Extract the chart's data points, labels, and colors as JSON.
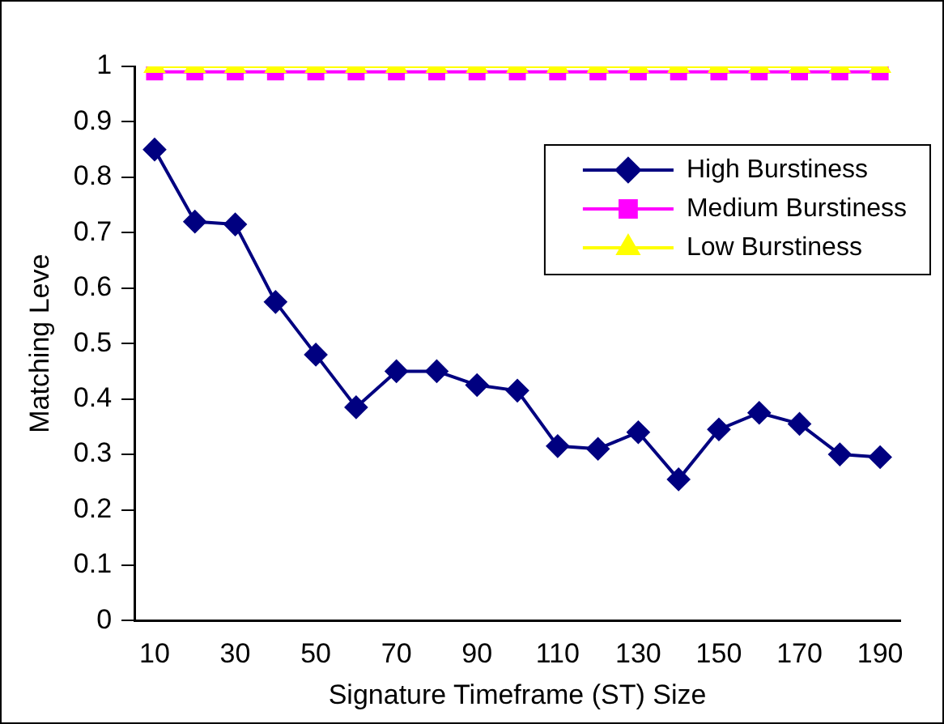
{
  "chart_data": {
    "type": "line",
    "xlabel": "Signature Timeframe (ST) Size",
    "ylabel": "Matching Leve",
    "categories": [
      "10",
      null,
      "30",
      null,
      "50",
      null,
      "70",
      null,
      "90",
      null,
      "110",
      null,
      "130",
      null,
      "150",
      null,
      "170",
      null,
      "190"
    ],
    "series": [
      {
        "name": "High Burstiness",
        "color": "#000080",
        "marker": "diamond",
        "values": [
          0.85,
          0.72,
          0.715,
          0.575,
          0.48,
          0.385,
          0.45,
          0.45,
          0.425,
          0.415,
          0.315,
          0.31,
          0.34,
          0.255,
          0.345,
          0.375,
          0.355,
          0.3,
          0.295
        ]
      },
      {
        "name": "Medium Burstiness",
        "color": "#ff00ff",
        "marker": "square",
        "values": [
          0.99,
          0.99,
          0.99,
          0.99,
          0.99,
          0.99,
          0.99,
          0.99,
          0.99,
          0.99,
          0.99,
          0.99,
          0.99,
          0.99,
          0.99,
          0.99,
          0.99,
          0.99,
          0.99
        ]
      },
      {
        "name": "Low Burstiness",
        "color": "#ffff00",
        "marker": "triangle",
        "values": [
          1,
          1,
          1,
          1,
          1,
          1,
          1,
          1,
          1,
          1,
          1,
          1,
          1,
          1,
          1,
          1,
          1,
          1,
          1
        ]
      }
    ],
    "ylim": [
      0,
      1
    ],
    "yticks": [
      0,
      0.1,
      0.2,
      0.3,
      0.4,
      0.5,
      0.6,
      0.7,
      0.8,
      0.9,
      1
    ],
    "grid": false,
    "legend": "top right"
  }
}
